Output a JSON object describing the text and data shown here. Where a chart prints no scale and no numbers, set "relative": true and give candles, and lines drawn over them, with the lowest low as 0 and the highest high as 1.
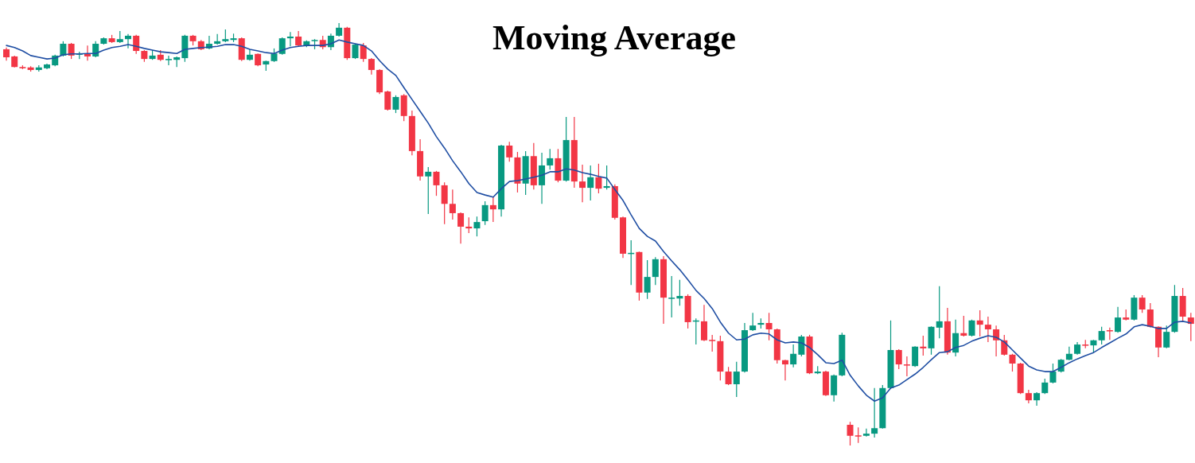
{
  "chart_data": {
    "type": "candlestick",
    "title": "Moving Average",
    "relative": true,
    "categories": [
      null,
      null,
      null,
      null,
      null,
      null,
      null,
      null,
      null,
      null,
      null,
      null,
      null,
      null,
      null,
      null,
      null,
      null,
      null,
      null,
      null,
      null,
      null,
      null,
      null,
      null,
      null,
      null,
      null,
      null,
      null,
      null,
      null,
      null,
      null,
      null,
      null,
      null,
      null,
      null,
      null,
      null,
      null,
      null,
      null,
      null,
      null,
      null,
      null,
      null,
      null,
      null,
      null,
      null,
      null,
      null,
      null,
      null,
      null,
      null,
      null,
      null,
      null,
      null,
      null,
      null,
      null,
      null,
      null,
      null,
      null,
      null,
      null,
      null,
      null,
      null,
      null,
      null,
      null,
      null,
      null,
      null,
      null,
      null,
      null,
      null,
      null,
      null,
      null,
      null,
      null,
      null,
      null,
      null,
      null,
      null,
      null,
      null,
      null,
      null,
      null,
      null,
      null,
      null,
      null,
      null,
      null,
      null,
      null,
      null,
      null,
      null,
      null,
      null,
      null,
      null,
      null,
      null,
      null,
      null,
      null,
      null,
      null,
      null,
      null,
      null,
      null,
      null,
      null,
      null,
      null,
      null,
      null,
      null,
      null,
      null,
      null,
      null,
      null,
      null,
      null,
      null,
      null,
      null,
      null,
      null,
      null
    ],
    "ohlc": [
      [
        0.938,
        0.942,
        0.911,
        0.919
      ],
      [
        0.921,
        0.923,
        0.895,
        0.896
      ],
      [
        0.896,
        0.9,
        0.891,
        0.893
      ],
      [
        0.895,
        0.898,
        0.885,
        0.889
      ],
      [
        0.889,
        0.9,
        0.885,
        0.895
      ],
      [
        0.893,
        0.904,
        0.891,
        0.902
      ],
      [
        0.9,
        0.925,
        0.898,
        0.923
      ],
      [
        0.923,
        0.957,
        0.921,
        0.951
      ],
      [
        0.951,
        0.953,
        0.915,
        0.923
      ],
      [
        0.925,
        0.932,
        0.915,
        0.928
      ],
      [
        0.928,
        0.947,
        0.911,
        0.921
      ],
      [
        0.921,
        0.957,
        0.919,
        0.951
      ],
      [
        0.951,
        0.966,
        0.949,
        0.964
      ],
      [
        0.964,
        0.972,
        0.953,
        0.955
      ],
      [
        0.955,
        0.981,
        0.953,
        0.962
      ],
      [
        0.962,
        0.974,
        0.94,
        0.97
      ],
      [
        0.97,
        0.972,
        0.927,
        0.934
      ],
      [
        0.934,
        0.936,
        0.908,
        0.915
      ],
      [
        0.915,
        0.936,
        0.913,
        0.923
      ],
      [
        0.925,
        0.936,
        0.91,
        0.913
      ],
      [
        0.913,
        0.923,
        0.9,
        0.915
      ],
      [
        0.913,
        0.921,
        0.896,
        0.919
      ],
      [
        0.917,
        0.972,
        0.908,
        0.97
      ],
      [
        0.97,
        0.972,
        0.947,
        0.957
      ],
      [
        0.957,
        0.96,
        0.936,
        0.938
      ],
      [
        0.94,
        0.97,
        0.938,
        0.951
      ],
      [
        0.951,
        0.974,
        0.949,
        0.957
      ],
      [
        0.957,
        0.985,
        0.955,
        0.962
      ],
      [
        0.96,
        0.975,
        0.955,
        0.964
      ],
      [
        0.964,
        0.966,
        0.91,
        0.913
      ],
      [
        0.913,
        0.938,
        0.911,
        0.925
      ],
      [
        0.927,
        0.928,
        0.898,
        0.9
      ],
      [
        0.902,
        0.911,
        0.887,
        0.91
      ],
      [
        0.91,
        0.94,
        0.908,
        0.928
      ],
      [
        0.927,
        0.966,
        0.925,
        0.964
      ],
      [
        0.964,
        0.979,
        0.945,
        0.968
      ],
      [
        0.968,
        0.981,
        0.945,
        0.947
      ],
      [
        0.947,
        0.959,
        0.943,
        0.957
      ],
      [
        0.959,
        0.962,
        0.938,
        0.96
      ],
      [
        0.96,
        0.97,
        0.938,
        0.943
      ],
      [
        0.943,
        0.975,
        0.936,
        0.97
      ],
      [
        0.97,
        1,
        0.968,
        0.989
      ],
      [
        0.989,
        0.991,
        0.913,
        0.917
      ],
      [
        0.917,
        0.951,
        0.915,
        0.949
      ],
      [
        0.947,
        0.953,
        0.908,
        0.915
      ],
      [
        0.915,
        0.917,
        0.878,
        0.889
      ],
      [
        0.889,
        0.891,
        0.832,
        0.836
      ],
      [
        0.838,
        0.84,
        0.793,
        0.795
      ],
      [
        0.795,
        0.829,
        0.787,
        0.825
      ],
      [
        0.829,
        0.832,
        0.768,
        0.78
      ],
      [
        0.78,
        0.793,
        0.687,
        0.697
      ],
      [
        0.697,
        0.725,
        0.627,
        0.637
      ],
      [
        0.637,
        0.659,
        0.548,
        0.648
      ],
      [
        0.648,
        0.65,
        0.591,
        0.616
      ],
      [
        0.616,
        0.623,
        0.524,
        0.572
      ],
      [
        0.572,
        0.606,
        0.535,
        0.55
      ],
      [
        0.55,
        0.552,
        0.478,
        0.518
      ],
      [
        0.518,
        0.54,
        0.503,
        0.514
      ],
      [
        0.514,
        0.542,
        0.495,
        0.529
      ],
      [
        0.531,
        0.578,
        0.522,
        0.569
      ],
      [
        0.569,
        0.588,
        0.529,
        0.559
      ],
      [
        0.559,
        0.712,
        0.542,
        0.71
      ],
      [
        0.71,
        0.719,
        0.672,
        0.682
      ],
      [
        0.682,
        0.695,
        0.599,
        0.62
      ],
      [
        0.62,
        0.697,
        0.593,
        0.685
      ],
      [
        0.685,
        0.716,
        0.606,
        0.616
      ],
      [
        0.616,
        0.693,
        0.572,
        0.663
      ],
      [
        0.663,
        0.702,
        0.653,
        0.68
      ],
      [
        0.68,
        0.702,
        0.623,
        0.627
      ],
      [
        0.627,
        0.778,
        0.625,
        0.723
      ],
      [
        0.723,
        0.778,
        0.61,
        0.625
      ],
      [
        0.625,
        0.665,
        0.576,
        0.61
      ],
      [
        0.61,
        0.663,
        0.58,
        0.635
      ],
      [
        0.635,
        0.667,
        0.597,
        0.608
      ],
      [
        0.61,
        0.663,
        0.606,
        0.614
      ],
      [
        0.614,
        0.618,
        0.535,
        0.539
      ],
      [
        0.54,
        0.542,
        0.444,
        0.454
      ],
      [
        0.454,
        0.486,
        0.38,
        0.456
      ],
      [
        0.458,
        0.459,
        0.343,
        0.362
      ],
      [
        0.362,
        0.439,
        0.347,
        0.399
      ],
      [
        0.399,
        0.446,
        0.38,
        0.441
      ],
      [
        0.441,
        0.448,
        0.288,
        0.35
      ],
      [
        0.348,
        0.401,
        0.303,
        0.35
      ],
      [
        0.348,
        0.392,
        0.331,
        0.354
      ],
      [
        0.354,
        0.358,
        0.277,
        0.292
      ],
      [
        0.294,
        0.301,
        0.239,
        0.296
      ],
      [
        0.294,
        0.333,
        0.247,
        0.249
      ],
      [
        0.25,
        0.262,
        0.222,
        0.249
      ],
      [
        0.247,
        0.26,
        0.154,
        0.175
      ],
      [
        0.175,
        0.186,
        0.143,
        0.145
      ],
      [
        0.145,
        0.198,
        0.115,
        0.175
      ],
      [
        0.175,
        0.29,
        0.173,
        0.273
      ],
      [
        0.273,
        0.314,
        0.271,
        0.284
      ],
      [
        0.286,
        0.301,
        0.277,
        0.29
      ],
      [
        0.29,
        0.314,
        0.249,
        0.275
      ],
      [
        0.275,
        0.277,
        0.194,
        0.202
      ],
      [
        0.202,
        0.203,
        0.154,
        0.192
      ],
      [
        0.192,
        0.239,
        0.185,
        0.217
      ],
      [
        0.215,
        0.262,
        0.211,
        0.258
      ],
      [
        0.258,
        0.262,
        0.169,
        0.171
      ],
      [
        0.171,
        0.188,
        0.169,
        0.175
      ],
      [
        0.175,
        0.177,
        0.117,
        0.119
      ],
      [
        0.119,
        0.168,
        0.104,
        0.166
      ],
      [
        0.166,
        0.267,
        0.164,
        0.262
      ],
      [
        0.049,
        0.056,
        0,
        0.023
      ],
      [
        0.024,
        0.043,
        0.006,
        0.023
      ],
      [
        0.023,
        0.04,
        0.021,
        0.028
      ],
      [
        0.028,
        0.136,
        0.019,
        0.041
      ],
      [
        0.041,
        0.143,
        0.04,
        0.136
      ],
      [
        0.136,
        0.296,
        0.134,
        0.226
      ],
      [
        0.226,
        0.228,
        0.181,
        0.192
      ],
      [
        0.192,
        0.211,
        0.164,
        0.19
      ],
      [
        0.188,
        0.235,
        0.186,
        0.234
      ],
      [
        0.234,
        0.26,
        0.213,
        0.23
      ],
      [
        0.23,
        0.282,
        0.215,
        0.281
      ],
      [
        0.279,
        0.377,
        0.254,
        0.294
      ],
      [
        0.294,
        0.326,
        0.215,
        0.22
      ],
      [
        0.22,
        0.298,
        0.211,
        0.266
      ],
      [
        0.266,
        0.307,
        0.258,
        0.26
      ],
      [
        0.26,
        0.298,
        0.258,
        0.296
      ],
      [
        0.296,
        0.32,
        0.258,
        0.286
      ],
      [
        0.286,
        0.305,
        0.245,
        0.275
      ],
      [
        0.275,
        0.284,
        0.211,
        0.249
      ],
      [
        0.249,
        0.262,
        0.213,
        0.215
      ],
      [
        0.215,
        0.217,
        0.175,
        0.194
      ],
      [
        0.194,
        0.196,
        0.122,
        0.124
      ],
      [
        0.124,
        0.132,
        0.1,
        0.107
      ],
      [
        0.107,
        0.126,
        0.094,
        0.124
      ],
      [
        0.124,
        0.158,
        0.122,
        0.149
      ],
      [
        0.149,
        0.194,
        0.147,
        0.175
      ],
      [
        0.175,
        0.205,
        0.173,
        0.203
      ],
      [
        0.203,
        0.234,
        0.202,
        0.217
      ],
      [
        0.217,
        0.245,
        0.215,
        0.239
      ],
      [
        0.239,
        0.25,
        0.23,
        0.237
      ],
      [
        0.237,
        0.25,
        0.22,
        0.249
      ],
      [
        0.249,
        0.281,
        0.239,
        0.271
      ],
      [
        0.273,
        0.279,
        0.25,
        0.271
      ],
      [
        0.269,
        0.328,
        0.267,
        0.303
      ],
      [
        0.303,
        0.322,
        0.296,
        0.298
      ],
      [
        0.298,
        0.356,
        0.296,
        0.35
      ],
      [
        0.35,
        0.356,
        0.314,
        0.322
      ],
      [
        0.322,
        0.337,
        0.279,
        0.281
      ],
      [
        0.281,
        0.282,
        0.209,
        0.232
      ],
      [
        0.232,
        0.284,
        0.23,
        0.269
      ],
      [
        0.269,
        0.38,
        0.267,
        0.354
      ],
      [
        0.354,
        0.373,
        0.292,
        0.305
      ],
      [
        0.303,
        0.314,
        0.247,
        0.288
      ]
    ],
    "colors": [
      "#f23645",
      "#f23645",
      "#f23645",
      "#f23645",
      "#089981",
      "#089981",
      "#089981",
      "#089981",
      "#f23645",
      "#089981",
      "#f23645",
      "#089981",
      "#089981",
      "#f23645",
      "#089981",
      "#089981",
      "#f23645",
      "#f23645",
      "#089981",
      "#f23645",
      "#089981",
      "#089981",
      "#089981",
      "#f23645",
      "#f23645",
      "#089981",
      "#089981",
      "#089981",
      "#089981",
      "#f23645",
      "#089981",
      "#f23645",
      "#089981",
      "#089981",
      "#089981",
      "#089981",
      "#f23645",
      "#089981",
      "#089981",
      "#f23645",
      "#089981",
      "#089981",
      "#f23645",
      "#089981",
      "#f23645",
      "#f23645",
      "#f23645",
      "#f23645",
      "#089981",
      "#f23645",
      "#f23645",
      "#f23645",
      "#089981",
      "#f23645",
      "#f23645",
      "#f23645",
      "#f23645",
      "#f23645",
      "#089981",
      "#089981",
      "#f23645",
      "#089981",
      "#f23645",
      "#f23645",
      "#089981",
      "#f23645",
      "#089981",
      "#089981",
      "#f23645",
      "#089981",
      "#f23645",
      "#f23645",
      "#089981",
      "#f23645",
      "#089981",
      "#f23645",
      "#f23645",
      "#089981",
      "#f23645",
      "#089981",
      "#089981",
      "#f23645",
      "#089981",
      "#089981",
      "#f23645",
      "#089981",
      "#f23645",
      "#f23645",
      "#f23645",
      "#f23645",
      "#089981",
      "#089981",
      "#089981",
      "#089981",
      "#f23645",
      "#f23645",
      "#f23645",
      "#089981",
      "#089981",
      "#f23645",
      "#089981",
      "#f23645",
      "#089981",
      "#089981",
      "#f23645",
      "#f23645",
      "#089981",
      "#089981",
      "#089981",
      "#089981",
      "#f23645",
      "#f23645",
      "#089981",
      "#f23645",
      "#089981",
      "#089981",
      "#f23645",
      "#089981",
      "#f23645",
      "#089981",
      "#f23645",
      "#f23645",
      "#f23645",
      "#f23645",
      "#f23645",
      "#f23645",
      "#f23645",
      "#089981",
      "#089981",
      "#089981",
      "#089981",
      "#089981",
      "#089981",
      "#f23645",
      "#089981",
      "#089981",
      "#f23645",
      "#089981",
      "#f23645",
      "#089981",
      "#f23645",
      "#f23645",
      "#f23645",
      "#089981",
      "#089981",
      "#f23645",
      "#f23645"
    ],
    "series": [
      {
        "type": "line",
        "color": "#1f4ea3",
        "values": [
          0.947,
          0.942,
          0.934,
          0.923,
          0.919,
          0.915,
          0.917,
          0.925,
          0.927,
          0.927,
          0.928,
          0.928,
          0.936,
          0.942,
          0.945,
          0.949,
          0.945,
          0.94,
          0.936,
          0.932,
          0.93,
          0.928,
          0.938,
          0.94,
          0.942,
          0.943,
          0.945,
          0.949,
          0.949,
          0.945,
          0.938,
          0.934,
          0.93,
          0.928,
          0.936,
          0.942,
          0.945,
          0.947,
          0.947,
          0.947,
          0.951,
          0.96,
          0.955,
          0.951,
          0.947,
          0.934,
          0.911,
          0.891,
          0.876,
          0.847,
          0.819,
          0.791,
          0.763,
          0.731,
          0.704,
          0.674,
          0.648,
          0.62,
          0.599,
          0.593,
          0.588,
          0.608,
          0.625,
          0.627,
          0.631,
          0.635,
          0.64,
          0.648,
          0.648,
          0.655,
          0.652,
          0.646,
          0.642,
          0.637,
          0.633,
          0.606,
          0.58,
          0.546,
          0.514,
          0.495,
          0.484,
          0.459,
          0.437,
          0.416,
          0.392,
          0.367,
          0.348,
          0.324,
          0.292,
          0.266,
          0.25,
          0.252,
          0.262,
          0.266,
          0.264,
          0.25,
          0.243,
          0.245,
          0.243,
          0.232,
          0.215,
          0.196,
          0.194,
          0.202,
          0.166,
          0.141,
          0.119,
          0.105,
          0.113,
          0.136,
          0.143,
          0.156,
          0.169,
          0.185,
          0.203,
          0.22,
          0.222,
          0.232,
          0.237,
          0.247,
          0.254,
          0.26,
          0.256,
          0.245,
          0.226,
          0.207,
          0.188,
          0.179,
          0.175,
          0.175,
          0.185,
          0.196,
          0.205,
          0.213,
          0.22,
          0.232,
          0.243,
          0.254,
          0.264,
          0.281,
          0.286,
          0.282,
          0.277,
          0.277,
          0.292,
          0.294,
          0.29
        ]
      }
    ]
  }
}
